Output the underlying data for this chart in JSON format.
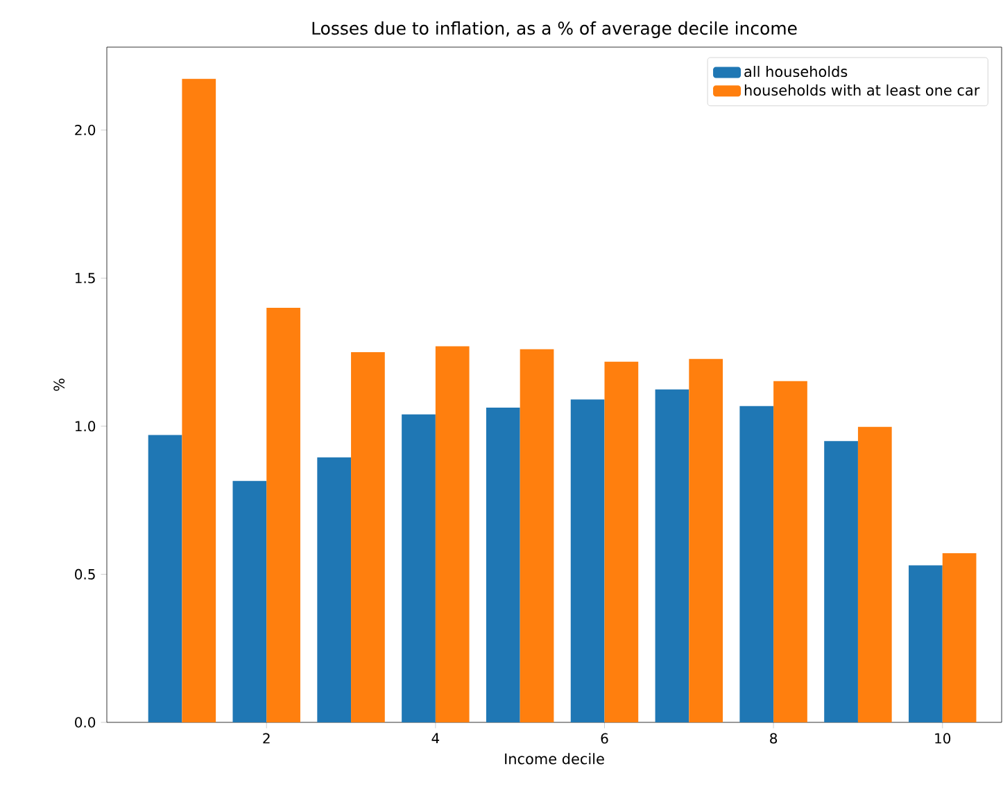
{
  "chart_data": {
    "type": "bar",
    "title": "Losses due to inflation, as a % of average decile income",
    "xlabel": "Income decile",
    "ylabel": "%",
    "x": [
      1,
      2,
      3,
      4,
      5,
      6,
      7,
      8,
      9,
      10
    ],
    "series": [
      {
        "name": "all households",
        "color": "#1f77b4",
        "values": [
          0.97,
          0.815,
          0.895,
          1.04,
          1.063,
          1.09,
          1.124,
          1.068,
          0.95,
          0.53
        ]
      },
      {
        "name": "households with at least one car",
        "color": "#ff7f0e",
        "values": [
          2.173,
          1.4,
          1.25,
          1.27,
          1.26,
          1.218,
          1.227,
          1.152,
          0.998,
          0.571
        ]
      }
    ],
    "xlim": [
      0.11,
      10.7
    ],
    "ylim": [
      0,
      2.28
    ],
    "xticks": [
      2,
      4,
      6,
      8,
      10
    ],
    "yticks": [
      {
        "value": 0,
        "label": "0.0"
      },
      0.5,
      {
        "value": 1,
        "label": "1.0"
      },
      1.5,
      {
        "value": 2,
        "label": "2.0"
      }
    ],
    "grid": false,
    "legend": "top right"
  }
}
